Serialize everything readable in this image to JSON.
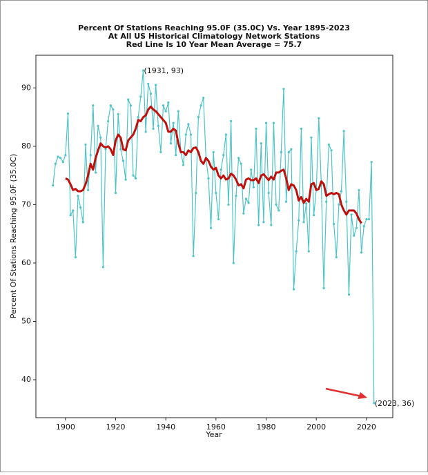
{
  "chart_data": {
    "type": "line",
    "title": "Percent Of Stations Reaching 95.0F (35.0C) Vs. Year 1895-2023",
    "subtitle": [
      "At All US Historical Climatology Network Stations",
      "Red Line Is 10 Year Mean  Average = 75.7"
    ],
    "xlabel": "Year",
    "ylabel": "Percent Of Stations Reaching 95.0F (35.0C)",
    "x": [
      1895,
      1896,
      1897,
      1898,
      1899,
      1900,
      1901,
      1902,
      1903,
      1904,
      1905,
      1906,
      1907,
      1908,
      1909,
      1910,
      1911,
      1912,
      1913,
      1914,
      1915,
      1916,
      1917,
      1918,
      1919,
      1920,
      1921,
      1922,
      1923,
      1924,
      1925,
      1926,
      1927,
      1928,
      1929,
      1930,
      1931,
      1932,
      1933,
      1934,
      1935,
      1936,
      1937,
      1938,
      1939,
      1940,
      1941,
      1942,
      1943,
      1944,
      1945,
      1946,
      1947,
      1948,
      1949,
      1950,
      1951,
      1952,
      1953,
      1954,
      1955,
      1956,
      1957,
      1958,
      1959,
      1960,
      1961,
      1962,
      1963,
      1964,
      1965,
      1966,
      1967,
      1968,
      1969,
      1970,
      1971,
      1972,
      1973,
      1974,
      1975,
      1976,
      1977,
      1978,
      1979,
      1980,
      1981,
      1982,
      1983,
      1984,
      1985,
      1986,
      1987,
      1988,
      1989,
      1990,
      1991,
      1992,
      1993,
      1994,
      1995,
      1996,
      1997,
      1998,
      1999,
      2000,
      2001,
      2002,
      2003,
      2004,
      2005,
      2006,
      2007,
      2008,
      2009,
      2010,
      2011,
      2012,
      2013,
      2014,
      2015,
      2016,
      2017,
      2018,
      2019,
      2020,
      2021,
      2022,
      2023
    ],
    "series": [
      {
        "color": "#4cc4c8",
        "markers": true,
        "values": [
          73.3,
          77,
          78.2,
          78,
          77.3,
          78.5,
          85.6,
          68.2,
          69,
          61,
          71.5,
          69.5,
          67,
          80.3,
          72.5,
          78.5,
          87,
          75.5,
          83.5,
          81.5,
          59.3,
          79.5,
          84.3,
          87,
          86.3,
          72,
          85.5,
          79.5,
          77.5,
          74.3,
          88,
          87,
          75,
          74.5,
          85,
          88.5,
          93,
          82.5,
          90.7,
          89,
          83,
          90.5,
          83.5,
          79,
          87,
          86,
          87.5,
          80.5,
          84,
          78.5,
          86,
          79,
          76.8,
          82,
          83.8,
          82,
          61.2,
          72,
          85,
          87,
          88.3,
          78,
          74.5,
          66,
          79,
          72,
          67.5,
          76,
          78.5,
          82,
          70,
          84.3,
          60,
          71.5,
          78,
          77,
          68.5,
          71,
          70.3,
          76,
          73,
          83,
          66.5,
          80.5,
          67,
          84,
          72,
          66.5,
          84,
          70,
          69,
          79,
          89.8,
          70.5,
          79,
          79.5,
          55.5,
          62,
          67.3,
          83,
          67,
          70.2,
          62,
          81.5,
          68.2,
          72.5,
          84.8,
          73.3,
          55.7,
          70.5,
          80.3,
          79.3,
          66.7,
          61,
          70,
          72.3,
          82.6,
          70.5,
          54.6,
          68.3,
          64.7,
          66,
          72.5,
          61.8,
          66.3,
          67.5,
          67.5,
          77.3,
          36
        ]
      },
      {
        "color": "#c0100c",
        "markers": false,
        "values": [
          null,
          null,
          null,
          null,
          null,
          74.5,
          74.3,
          73.5,
          72.5,
          72.7,
          72.3,
          72.3,
          72.5,
          73.5,
          75,
          77,
          76,
          78,
          79.3,
          80.5,
          80,
          79.8,
          80,
          79.5,
          78.5,
          81,
          82,
          81.5,
          79.5,
          79.3,
          81,
          81.5,
          82,
          83,
          84.5,
          84.3,
          85,
          85.3,
          86.3,
          86.8,
          86.3,
          86,
          85.5,
          85,
          84.5,
          84,
          82.5,
          82.5,
          83,
          82.7,
          80.5,
          79,
          79,
          78.5,
          79.3,
          79,
          79.7,
          79.8,
          79,
          77.5,
          77,
          78,
          77.5,
          76.5,
          76,
          76.3,
          75,
          74.5,
          75,
          74.3,
          74.5,
          75.3,
          75,
          74.3,
          73.3,
          73.5,
          72.8,
          74.3,
          74.5,
          74.2,
          74.2,
          74.5,
          73.7,
          75,
          75.2,
          74.7,
          74.2,
          74.8,
          74.3,
          75.5,
          75.5,
          75.8,
          76,
          74.5,
          72.5,
          73.5,
          73.3,
          72.5,
          70.7,
          71.3,
          70.3,
          71,
          70.5,
          73.5,
          73.7,
          72.5,
          72.7,
          74,
          73.5,
          71.5,
          71.8,
          72,
          71.8,
          72,
          71.8,
          70,
          69,
          68.3,
          69,
          69,
          69,
          68.5,
          67.5,
          66.8,
          null,
          null,
          null,
          null,
          null
        ]
      }
    ],
    "annotations": [
      {
        "text": "(1931, 93)",
        "x": 1931,
        "y": 93
      },
      {
        "text": "(2023, 36)",
        "x": 2023,
        "y": 36
      }
    ],
    "xlim": [
      1888.2,
      2030.5
    ],
    "ylim": [
      33.5,
      95.6
    ],
    "xticks": [
      1900,
      1920,
      1940,
      1960,
      1980,
      2000,
      2020
    ],
    "yticks": [
      40,
      50,
      60,
      70,
      80,
      90
    ],
    "grid": false
  }
}
